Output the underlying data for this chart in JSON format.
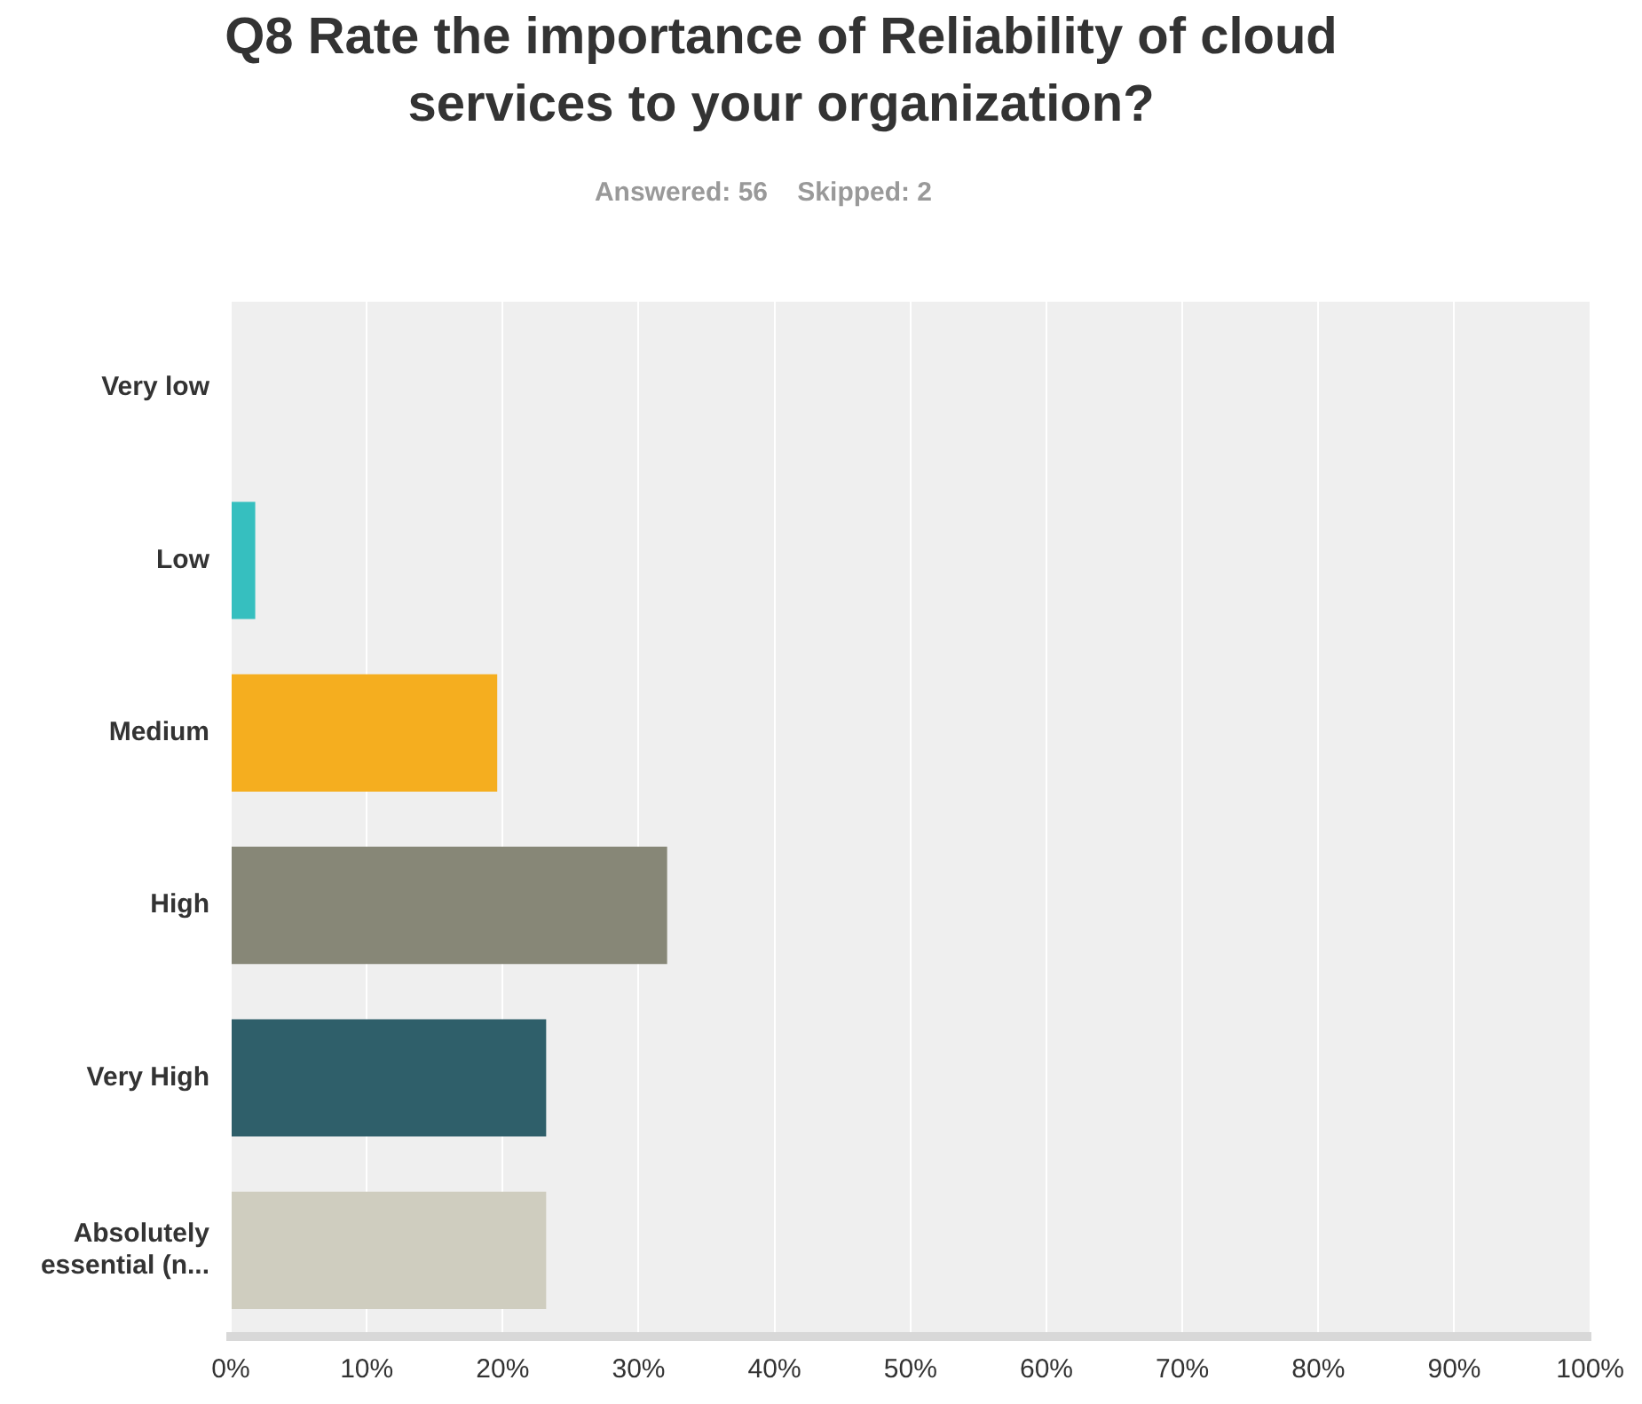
{
  "chart_data": {
    "type": "bar",
    "orientation": "horizontal",
    "title": "Q8 Rate the importance of Reliability of cloud services to your organization?",
    "subtitle": "Answered: 56    Skipped: 2",
    "categories": [
      "Very low",
      "Low",
      "Medium",
      "High",
      "Very High",
      "Absolutely essential (n..."
    ],
    "values": [
      0,
      1.8,
      19.6,
      32.1,
      23.2,
      23.2
    ],
    "colors": [
      "#2f5f6a",
      "#36bfbf",
      "#f5ae1f",
      "#878777",
      "#2f5f6a",
      "#cfcdbf"
    ],
    "xlim": [
      0,
      100
    ],
    "xticks": [
      {
        "value": 0,
        "label": "0%"
      },
      {
        "value": 10,
        "label": "10%"
      },
      {
        "value": 20,
        "label": "20%"
      },
      {
        "value": 30,
        "label": "30%"
      },
      {
        "value": 40,
        "label": "40%"
      },
      {
        "value": 50,
        "label": "50%"
      },
      {
        "value": 60,
        "label": "60%"
      },
      {
        "value": 70,
        "label": "70%"
      },
      {
        "value": 80,
        "label": "80%"
      },
      {
        "value": 90,
        "label": "90%"
      },
      {
        "value": 100,
        "label": "100%"
      }
    ],
    "grid": "x",
    "legend": false
  }
}
